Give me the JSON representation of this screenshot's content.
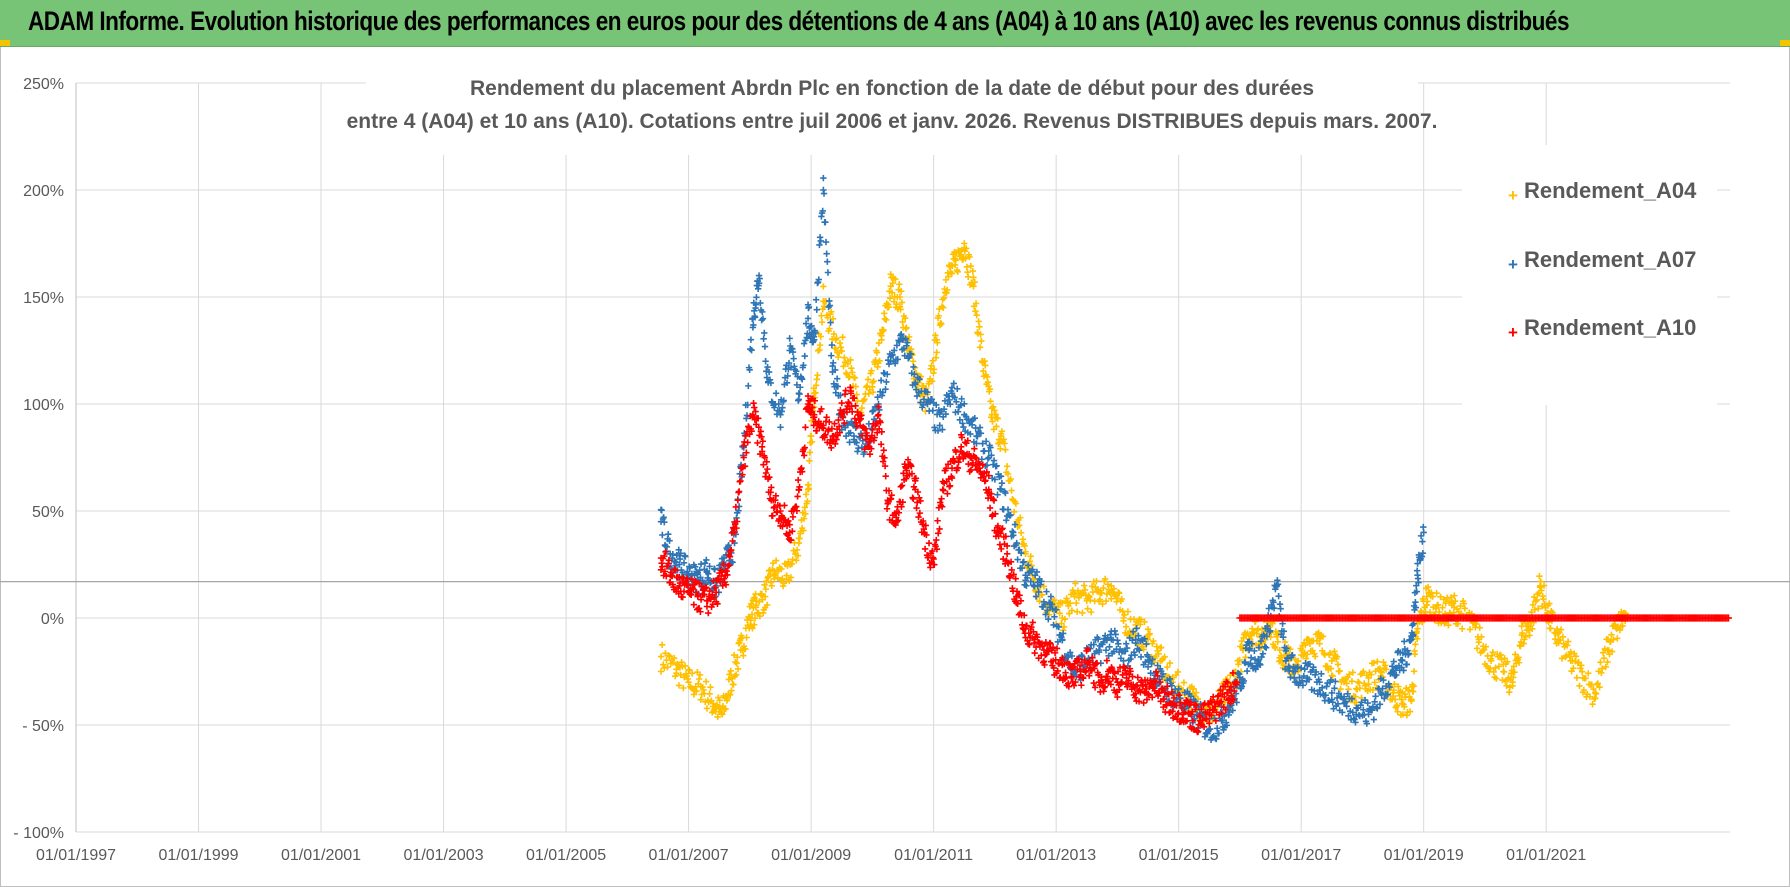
{
  "banner": {
    "title": "ADAM Informe. Evolution historique des performances en euros pour des détentions de 4 ans (A04) à 10 ans (A10) avec les revenus connus distribués",
    "color": "#77c476"
  },
  "chart_data": {
    "type": "scatter",
    "title_lines": [
      "Rendement du placement Abrdn Plc en fonction de la date de début pour des durées",
      "entre 4 (A04) et 10 ans (A10).  Cotations entre juil 2006 et janv. 2026. Revenus DISTRIBUES depuis mars. 2007."
    ],
    "x_axis": {
      "type": "date",
      "range": [
        1997.0,
        2024.0
      ],
      "tick_labels": [
        "01/01/1997",
        "01/01/1999",
        "01/01/2001",
        "01/01/2003",
        "01/01/2005",
        "01/01/2007",
        "01/01/2009",
        "01/01/2011",
        "01/01/2013",
        "01/01/2015",
        "01/01/2017",
        "01/01/2019",
        "01/01/2021"
      ],
      "tick_values": [
        1997,
        1999,
        2001,
        2003,
        2005,
        2007,
        2009,
        2011,
        2013,
        2015,
        2017,
        2019,
        2021
      ]
    },
    "y_axis": {
      "range": [
        -100,
        250
      ],
      "unit": "%",
      "tick_values": [
        -100,
        -50,
        0,
        50,
        100,
        150,
        200,
        250
      ],
      "tick_labels": [
        "- 100%",
        "- 50%",
        "0%",
        "50%",
        "100%",
        "150%",
        "200%",
        "250%"
      ],
      "reference_line": 17
    },
    "marker": "+",
    "series": [
      {
        "name": "Rendement_A04",
        "color": "#ffc000",
        "x": [
          2006.55,
          2006.8,
          2007.0,
          2007.2,
          2007.4,
          2007.55,
          2007.7,
          2007.85,
          2008.0,
          2008.1,
          2008.25,
          2008.4,
          2008.6,
          2008.8,
          2008.95,
          2009.05,
          2009.2,
          2009.4,
          2009.6,
          2009.8,
          2010.0,
          2010.15,
          2010.3,
          2010.45,
          2010.6,
          2010.75,
          2010.9,
          2011.05,
          2011.2,
          2011.35,
          2011.5,
          2011.65,
          2011.8,
          2011.95,
          2012.1,
          2012.3,
          2012.5,
          2012.7,
          2012.9,
          2013.1,
          2013.3,
          2013.5,
          2013.7,
          2013.9,
          2014.1,
          2014.3,
          2014.5,
          2014.7,
          2014.9,
          2015.1,
          2015.3,
          2015.5,
          2015.7,
          2015.9,
          2016.05,
          2016.2,
          2016.35,
          2016.5,
          2016.65,
          2016.8,
          2016.95,
          2017.1,
          2017.3,
          2017.5,
          2017.7,
          2017.9,
          2018.1,
          2018.3,
          2018.5,
          2018.65,
          2018.8,
          2018.9,
          2019.05,
          2019.2,
          2019.35,
          2019.5,
          2019.7,
          2019.9,
          2020.1,
          2020.3,
          2020.45,
          2020.6,
          2020.75,
          2020.9,
          2021.05,
          2021.2,
          2021.4,
          2021.6,
          2021.8,
          2022.0,
          2022.15,
          2022.3
        ],
        "y": [
          -18,
          -24,
          -30,
          -32,
          -40,
          -45,
          -28,
          -15,
          0,
          5,
          10,
          22,
          18,
          35,
          60,
          105,
          148,
          130,
          120,
          95,
          110,
          130,
          155,
          150,
          125,
          110,
          100,
          130,
          158,
          165,
          175,
          155,
          120,
          95,
          85,
          55,
          30,
          15,
          5,
          0,
          10,
          8,
          12,
          15,
          0,
          -5,
          -10,
          -20,
          -30,
          -35,
          -40,
          -45,
          -38,
          -30,
          -15,
          -5,
          -8,
          -2,
          -15,
          -20,
          -25,
          -10,
          -12,
          -20,
          -30,
          -33,
          -28,
          -25,
          -35,
          -40,
          -38,
          -5,
          10,
          5,
          2,
          5,
          0,
          -10,
          -20,
          -25,
          -30,
          -8,
          -2,
          15,
          0,
          -10,
          -20,
          -28,
          -35,
          -15,
          -5,
          2
        ]
      },
      {
        "name": "Rendement_A07",
        "color": "#2e75b6",
        "x": [
          2006.55,
          2006.7,
          2006.85,
          2007.0,
          2007.15,
          2007.3,
          2007.45,
          2007.6,
          2007.75,
          2007.9,
          2008.05,
          2008.15,
          2008.3,
          2008.5,
          2008.65,
          2008.8,
          2008.95,
          2009.05,
          2009.2,
          2009.35,
          2009.5,
          2009.7,
          2009.9,
          2010.1,
          2010.3,
          2010.5,
          2010.7,
          2010.9,
          2011.1,
          2011.3,
          2011.5,
          2011.7,
          2011.9,
          2012.1,
          2012.3,
          2012.5,
          2012.7,
          2012.9,
          2013.1,
          2013.3,
          2013.5,
          2013.7,
          2013.9,
          2014.1,
          2014.3,
          2014.5,
          2014.7,
          2014.9,
          2015.1,
          2015.3,
          2015.5,
          2015.7,
          2015.85,
          2016.0,
          2016.15,
          2016.3,
          2016.45,
          2016.6,
          2016.75,
          2016.9,
          2017.1,
          2017.3,
          2017.5,
          2017.7,
          2017.9,
          2018.1,
          2018.3,
          2018.5,
          2018.65,
          2018.8,
          2018.9,
          2019.0
        ],
        "y": [
          45,
          30,
          25,
          20,
          18,
          22,
          15,
          25,
          35,
          80,
          140,
          160,
          110,
          95,
          125,
          105,
          140,
          130,
          200,
          115,
          95,
          85,
          80,
          100,
          120,
          130,
          110,
          100,
          90,
          105,
          95,
          85,
          75,
          60,
          40,
          20,
          15,
          5,
          -10,
          -25,
          -20,
          -15,
          -10,
          -20,
          -10,
          -18,
          -30,
          -35,
          -40,
          -45,
          -52,
          -48,
          -40,
          -30,
          -15,
          -20,
          -5,
          15,
          -20,
          -25,
          -28,
          -30,
          -35,
          -40,
          -42,
          -45,
          -35,
          -25,
          -20,
          -10,
          20,
          40
        ]
      },
      {
        "name": "Rendement_A10",
        "color": "#ff0000",
        "x": [
          2006.55,
          2006.7,
          2006.85,
          2007.0,
          2007.15,
          2007.3,
          2007.45,
          2007.6,
          2007.75,
          2007.9,
          2008.05,
          2008.2,
          2008.35,
          2008.5,
          2008.65,
          2008.8,
          2008.95,
          2009.05,
          2009.2,
          2009.35,
          2009.5,
          2009.65,
          2009.8,
          2009.95,
          2010.1,
          2010.25,
          2010.4,
          2010.55,
          2010.7,
          2010.85,
          2011.0,
          2011.15,
          2011.3,
          2011.45,
          2011.6,
          2011.75,
          2011.9,
          2012.05,
          2012.2,
          2012.35,
          2012.5,
          2012.65,
          2012.8,
          2012.95,
          2013.1,
          2013.25,
          2013.4,
          2013.55,
          2013.7,
          2013.85,
          2014.0,
          2014.15,
          2014.3,
          2014.45,
          2014.6,
          2014.75,
          2014.9,
          2015.05,
          2015.2,
          2015.35,
          2015.5,
          2015.65,
          2015.8,
          2015.95
        ],
        "y": [
          28,
          20,
          15,
          12,
          10,
          8,
          12,
          20,
          40,
          75,
          95,
          80,
          55,
          50,
          40,
          60,
          100,
          95,
          90,
          85,
          95,
          105,
          90,
          80,
          95,
          55,
          45,
          70,
          60,
          40,
          25,
          60,
          70,
          80,
          75,
          70,
          60,
          40,
          30,
          10,
          -5,
          -10,
          -15,
          -20,
          -22,
          -28,
          -25,
          -20,
          -30,
          -25,
          -30,
          -28,
          -32,
          -35,
          -30,
          -38,
          -40,
          -42,
          -45,
          -48,
          -45,
          -40,
          -35,
          -30
        ]
      }
    ],
    "a10_zero_segment": {
      "x_start": 2016.0,
      "x_end": 2024.0,
      "y": 0
    },
    "legend": {
      "placement": "top-right",
      "entries": [
        "Rendement_A04",
        "Rendement_A07",
        "Rendement_A10"
      ]
    }
  }
}
